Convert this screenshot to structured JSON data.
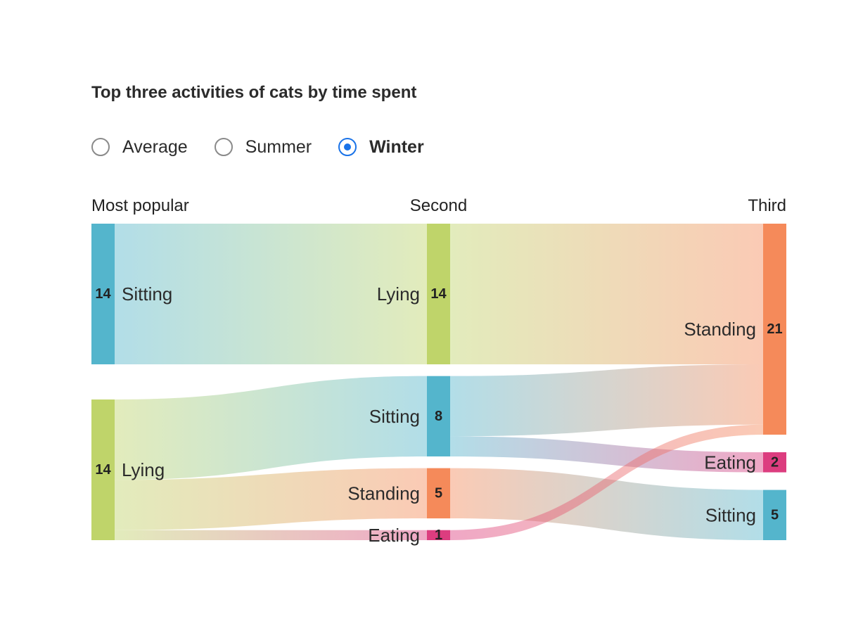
{
  "chart": {
    "title": "Top three activities of cats by time spent",
    "options": [
      {
        "label": "Average",
        "selected": false
      },
      {
        "label": "Summer",
        "selected": false
      },
      {
        "label": "Winter",
        "selected": true
      }
    ]
  },
  "chart_data": {
    "type": "sankey",
    "title": "Top three activities of cats by time spent",
    "columns": [
      "Most popular",
      "Second",
      "Third"
    ],
    "colors": {
      "Sitting": "#54b5cc",
      "Lying": "#bfd46a",
      "Standing": "#f58a5a",
      "Eating": "#dc3d7f"
    },
    "nodes": [
      {
        "id": "p_sitting",
        "column": 0,
        "label": "Sitting",
        "activity": "Sitting",
        "value": 14
      },
      {
        "id": "p_lying",
        "column": 0,
        "label": "Lying",
        "activity": "Lying",
        "value": 14
      },
      {
        "id": "s_lying",
        "column": 1,
        "label": "Lying",
        "activity": "Lying",
        "value": 14
      },
      {
        "id": "s_sitting",
        "column": 1,
        "label": "Sitting",
        "activity": "Sitting",
        "value": 8
      },
      {
        "id": "s_standing",
        "column": 1,
        "label": "Standing",
        "activity": "Standing",
        "value": 5
      },
      {
        "id": "s_eating",
        "column": 1,
        "label": "Eating",
        "activity": "Eating",
        "value": 1
      },
      {
        "id": "t_standing",
        "column": 2,
        "label": "Standing",
        "activity": "Standing",
        "value": 21
      },
      {
        "id": "t_eating",
        "column": 2,
        "label": "Eating",
        "activity": "Eating",
        "value": 2
      },
      {
        "id": "t_sitting",
        "column": 2,
        "label": "Sitting",
        "activity": "Sitting",
        "value": 5
      }
    ],
    "links": [
      {
        "source": "p_sitting",
        "target": "s_lying",
        "value": 14
      },
      {
        "source": "p_lying",
        "target": "s_sitting",
        "value": 8
      },
      {
        "source": "p_lying",
        "target": "s_standing",
        "value": 5
      },
      {
        "source": "p_lying",
        "target": "s_eating",
        "value": 1
      },
      {
        "source": "s_lying",
        "target": "t_standing",
        "value": 14
      },
      {
        "source": "s_sitting",
        "target": "t_standing",
        "value": 6
      },
      {
        "source": "s_sitting",
        "target": "t_eating",
        "value": 2
      },
      {
        "source": "s_standing",
        "target": "t_sitting",
        "value": 5
      },
      {
        "source": "s_eating",
        "target": "t_standing",
        "value": 1
      }
    ]
  }
}
